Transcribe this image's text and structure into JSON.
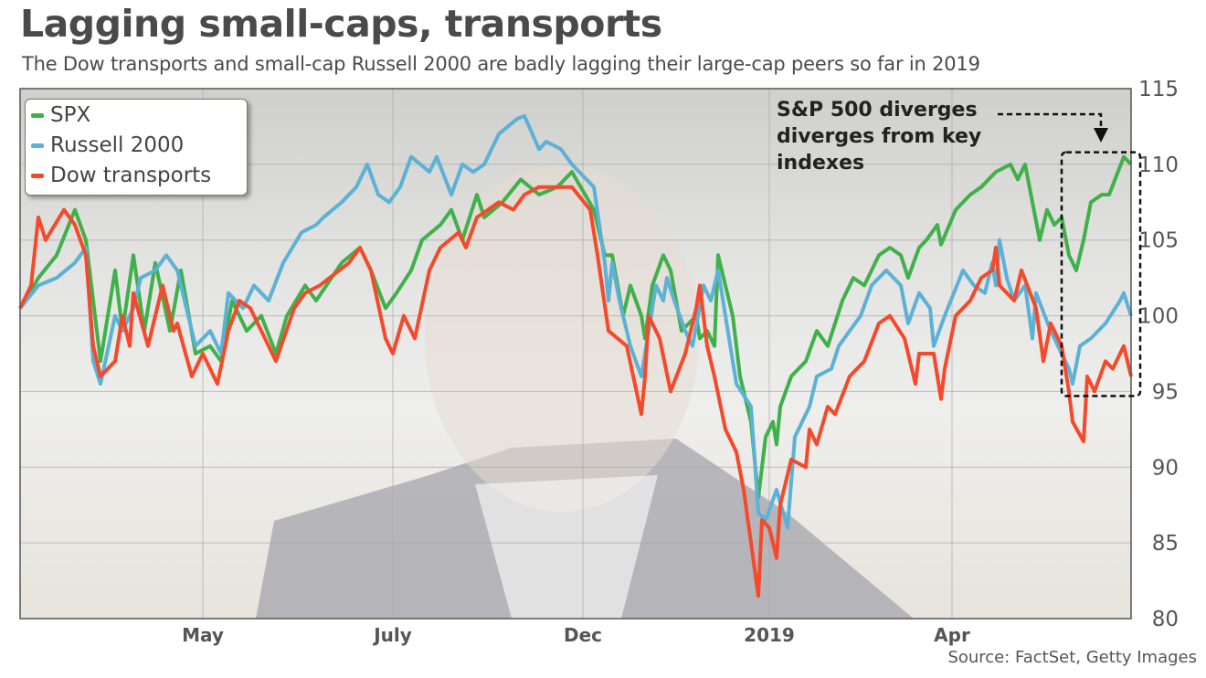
{
  "title": "Lagging small-caps, transports",
  "subtitle": "The Dow transports and small-cap Russell 2000 are badly lagging their large-cap peers so far in 2019",
  "source": "Source: FactSet, Getty Images",
  "chart_data": {
    "type": "line",
    "title": "Lagging small-caps, transports",
    "xlabel": "",
    "ylabel": "",
    "ylim": [
      80,
      115
    ],
    "yticks": [
      80,
      85,
      90,
      95,
      100,
      105,
      110,
      115
    ],
    "y_axis_side": "right",
    "xlim": [
      0,
      304
    ],
    "xticks": [
      {
        "label": "May",
        "x": 50
      },
      {
        "label": "July",
        "x": 102
      },
      {
        "label": "Dec",
        "x": 154
      },
      {
        "label": "2019",
        "x": 205
      },
      {
        "label": "Apr",
        "x": 255
      }
    ],
    "grid": true,
    "legend_position": "top-left",
    "annotation": {
      "lines": [
        "S&P 500 diverges",
        "diverges from key",
        "indexes"
      ],
      "highlight_x_range": [
        287,
        304
      ],
      "highlight_y_range": [
        94.7,
        110.8
      ]
    },
    "series": [
      {
        "name": "SPX",
        "color": "#3fb04a",
        "points": [
          [
            0,
            100.5
          ],
          [
            5,
            102.5
          ],
          [
            10,
            104
          ],
          [
            15,
            107
          ],
          [
            18,
            105
          ],
          [
            22,
            97
          ],
          [
            26,
            103
          ],
          [
            28,
            99
          ],
          [
            31,
            104
          ],
          [
            34,
            99
          ],
          [
            37,
            103.5
          ],
          [
            41,
            99
          ],
          [
            44,
            103
          ],
          [
            48,
            97.5
          ],
          [
            52,
            98
          ],
          [
            55,
            97
          ],
          [
            58,
            101
          ],
          [
            62,
            99
          ],
          [
            66,
            100
          ],
          [
            70,
            97.5
          ],
          [
            73,
            100
          ],
          [
            78,
            102
          ],
          [
            81,
            101
          ],
          [
            88,
            103.5
          ],
          [
            93,
            104.5
          ],
          [
            96,
            103
          ],
          [
            100,
            100.5
          ],
          [
            103,
            101.5
          ],
          [
            107,
            103
          ],
          [
            110,
            105
          ],
          [
            115,
            106
          ],
          [
            118,
            107
          ],
          [
            121,
            105
          ],
          [
            125,
            108
          ],
          [
            127,
            106.5
          ],
          [
            132,
            107.5
          ],
          [
            137,
            109
          ],
          [
            142,
            108
          ],
          [
            147,
            108.5
          ],
          [
            151,
            109.5
          ],
          [
            157,
            107
          ],
          [
            160,
            104
          ],
          [
            162,
            104
          ],
          [
            165,
            100
          ],
          [
            167,
            102
          ],
          [
            170,
            100
          ],
          [
            171,
            98.5
          ],
          [
            173,
            102
          ],
          [
            176,
            104
          ],
          [
            178,
            103
          ],
          [
            181,
            99
          ],
          [
            185,
            100
          ],
          [
            186,
            98.5
          ],
          [
            188,
            99
          ],
          [
            190,
            98
          ],
          [
            191,
            104
          ],
          [
            195,
            100
          ],
          [
            197,
            96
          ],
          [
            200,
            93
          ],
          [
            202,
            88
          ],
          [
            204,
            92
          ],
          [
            206,
            93
          ],
          [
            207,
            91.5
          ],
          [
            208,
            94
          ],
          [
            211,
            96
          ],
          [
            215,
            97
          ],
          [
            218,
            99
          ],
          [
            221,
            98
          ],
          [
            225,
            101
          ],
          [
            228,
            102.5
          ],
          [
            231,
            102
          ],
          [
            235,
            104
          ],
          [
            238,
            104.5
          ],
          [
            241,
            104
          ],
          [
            243,
            102.5
          ],
          [
            246,
            104.5
          ],
          [
            248,
            105
          ],
          [
            251,
            106
          ],
          [
            252,
            104.7
          ],
          [
            256,
            107
          ],
          [
            260,
            108
          ],
          [
            263,
            108.5
          ],
          [
            267,
            109.5
          ],
          [
            271,
            110
          ],
          [
            273,
            109
          ],
          [
            275,
            110
          ],
          [
            277,
            107.5
          ],
          [
            279,
            105
          ],
          [
            281,
            107
          ],
          [
            283,
            106
          ],
          [
            285,
            106.5
          ],
          [
            287,
            104
          ],
          [
            289,
            103
          ],
          [
            291,
            105
          ],
          [
            293,
            107.5
          ],
          [
            296,
            108
          ],
          [
            298,
            108
          ],
          [
            302,
            110.5
          ],
          [
            304,
            110
          ]
        ]
      },
      {
        "name": "Russell 2000",
        "color": "#5bb1d6",
        "points": [
          [
            0,
            100.5
          ],
          [
            5,
            102
          ],
          [
            10,
            102.5
          ],
          [
            15,
            103.5
          ],
          [
            18,
            104.5
          ],
          [
            20,
            97
          ],
          [
            22,
            95.5
          ],
          [
            26,
            100
          ],
          [
            28,
            99
          ],
          [
            31,
            100.5
          ],
          [
            33,
            102.5
          ],
          [
            37,
            103
          ],
          [
            40,
            104
          ],
          [
            43,
            103
          ],
          [
            48,
            98
          ],
          [
            52,
            99
          ],
          [
            55,
            97.5
          ],
          [
            57,
            101.5
          ],
          [
            61,
            100.5
          ],
          [
            64,
            102
          ],
          [
            68,
            101
          ],
          [
            72,
            103.5
          ],
          [
            77,
            105.5
          ],
          [
            81,
            106
          ],
          [
            83,
            106.5
          ],
          [
            88,
            107.5
          ],
          [
            92,
            108.5
          ],
          [
            95,
            110
          ],
          [
            98,
            108
          ],
          [
            101,
            107.5
          ],
          [
            104,
            108.5
          ],
          [
            107,
            110.5
          ],
          [
            112,
            109.5
          ],
          [
            114,
            110.5
          ],
          [
            118,
            108
          ],
          [
            121,
            110
          ],
          [
            124,
            109.5
          ],
          [
            127,
            110
          ],
          [
            131,
            112
          ],
          [
            136,
            113
          ],
          [
            138,
            113.2
          ],
          [
            142,
            111
          ],
          [
            144,
            111.5
          ],
          [
            148,
            111
          ],
          [
            151,
            110
          ],
          [
            157,
            108.5
          ],
          [
            160,
            103.5
          ],
          [
            161,
            101
          ],
          [
            162,
            103.5
          ],
          [
            164,
            101
          ],
          [
            167,
            98
          ],
          [
            170,
            96
          ],
          [
            172,
            99
          ],
          [
            174,
            102
          ],
          [
            176,
            101
          ],
          [
            177,
            102.5
          ],
          [
            179,
            101
          ],
          [
            182,
            99
          ],
          [
            184,
            98
          ],
          [
            187,
            102
          ],
          [
            189,
            101
          ],
          [
            191,
            103
          ],
          [
            193,
            100
          ],
          [
            196,
            95.5
          ],
          [
            200,
            94
          ],
          [
            202,
            87
          ],
          [
            204,
            86.5
          ],
          [
            207,
            88.5
          ],
          [
            210,
            86
          ],
          [
            212,
            92
          ],
          [
            216,
            94
          ],
          [
            218,
            96
          ],
          [
            222,
            96.5
          ],
          [
            224,
            98
          ],
          [
            230,
            100
          ],
          [
            233,
            102
          ],
          [
            237,
            103
          ],
          [
            241,
            102
          ],
          [
            243,
            99.5
          ],
          [
            246,
            101.5
          ],
          [
            249,
            100.5
          ],
          [
            250,
            98
          ],
          [
            253,
            100
          ],
          [
            258,
            103
          ],
          [
            261,
            102
          ],
          [
            264,
            101.5
          ],
          [
            266,
            103.5
          ],
          [
            267,
            102
          ],
          [
            268,
            105
          ],
          [
            270,
            102.5
          ],
          [
            272,
            101
          ],
          [
            275,
            102
          ],
          [
            277,
            98.5
          ],
          [
            278,
            101.5
          ],
          [
            282,
            99
          ],
          [
            287,
            96.5
          ],
          [
            288,
            95.5
          ],
          [
            290,
            98
          ],
          [
            293,
            98.5
          ],
          [
            297,
            99.5
          ],
          [
            301,
            101
          ],
          [
            302,
            101.5
          ],
          [
            304,
            100
          ]
        ]
      },
      {
        "name": "Dow transports",
        "color": "#f4492b",
        "points": [
          [
            0,
            100.5
          ],
          [
            3,
            102
          ],
          [
            5,
            106.5
          ],
          [
            7,
            105
          ],
          [
            12,
            107
          ],
          [
            15,
            106
          ],
          [
            18,
            104
          ],
          [
            20,
            98
          ],
          [
            22,
            96
          ],
          [
            26,
            97
          ],
          [
            28,
            100
          ],
          [
            30,
            98
          ],
          [
            31,
            101.5
          ],
          [
            35,
            98
          ],
          [
            39,
            102
          ],
          [
            42,
            99
          ],
          [
            43,
            99.5
          ],
          [
            47,
            96
          ],
          [
            50,
            97.5
          ],
          [
            54,
            95.5
          ],
          [
            57,
            99
          ],
          [
            60,
            101
          ],
          [
            63,
            100.5
          ],
          [
            67,
            98.5
          ],
          [
            70,
            97
          ],
          [
            75,
            100.5
          ],
          [
            78,
            101.5
          ],
          [
            82,
            102
          ],
          [
            90,
            103.5
          ],
          [
            93,
            104.5
          ],
          [
            96,
            103
          ],
          [
            100,
            98.5
          ],
          [
            102,
            97.5
          ],
          [
            105,
            100
          ],
          [
            108,
            98.5
          ],
          [
            112,
            103
          ],
          [
            115,
            104.5
          ],
          [
            120,
            105.5
          ],
          [
            122,
            104.5
          ],
          [
            125,
            106.5
          ],
          [
            131,
            107.5
          ],
          [
            135,
            107
          ],
          [
            138,
            108
          ],
          [
            142,
            108.5
          ],
          [
            146,
            108.5
          ],
          [
            151,
            108.5
          ],
          [
            156,
            107
          ],
          [
            158,
            104
          ],
          [
            161,
            99
          ],
          [
            166,
            98
          ],
          [
            170,
            93.5
          ],
          [
            171,
            96
          ],
          [
            172,
            100
          ],
          [
            175,
            98.5
          ],
          [
            178,
            95
          ],
          [
            182,
            97.5
          ],
          [
            185,
            100.5
          ],
          [
            186,
            102
          ],
          [
            188,
            98
          ],
          [
            190,
            96
          ],
          [
            193,
            92.5
          ],
          [
            196,
            91
          ],
          [
            198,
            88.5
          ],
          [
            200,
            85
          ],
          [
            202,
            81.5
          ],
          [
            203,
            86.5
          ],
          [
            205,
            86
          ],
          [
            207,
            84
          ],
          [
            208,
            87.5
          ],
          [
            211,
            90.5
          ],
          [
            215,
            90
          ],
          [
            216,
            92.5
          ],
          [
            218,
            91.5
          ],
          [
            221,
            94
          ],
          [
            223,
            93.5
          ],
          [
            227,
            96
          ],
          [
            231,
            97
          ],
          [
            235,
            99.5
          ],
          [
            238,
            100
          ],
          [
            242,
            98.5
          ],
          [
            245,
            95.5
          ],
          [
            246,
            97.5
          ],
          [
            250,
            97.5
          ],
          [
            252,
            94.5
          ],
          [
            253,
            96.5
          ],
          [
            256,
            100
          ],
          [
            260,
            101
          ],
          [
            263,
            102.5
          ],
          [
            266,
            103
          ],
          [
            267,
            104.5
          ],
          [
            268,
            102
          ],
          [
            272,
            101
          ],
          [
            274,
            103
          ],
          [
            278,
            100.5
          ],
          [
            280,
            97
          ],
          [
            282,
            99.5
          ],
          [
            285,
            98
          ],
          [
            287,
            95
          ],
          [
            288,
            93
          ],
          [
            291,
            91.7
          ],
          [
            292,
            96
          ],
          [
            294,
            95
          ],
          [
            297,
            97
          ],
          [
            299,
            96.5
          ],
          [
            302,
            98
          ],
          [
            304,
            96
          ]
        ]
      }
    ]
  }
}
